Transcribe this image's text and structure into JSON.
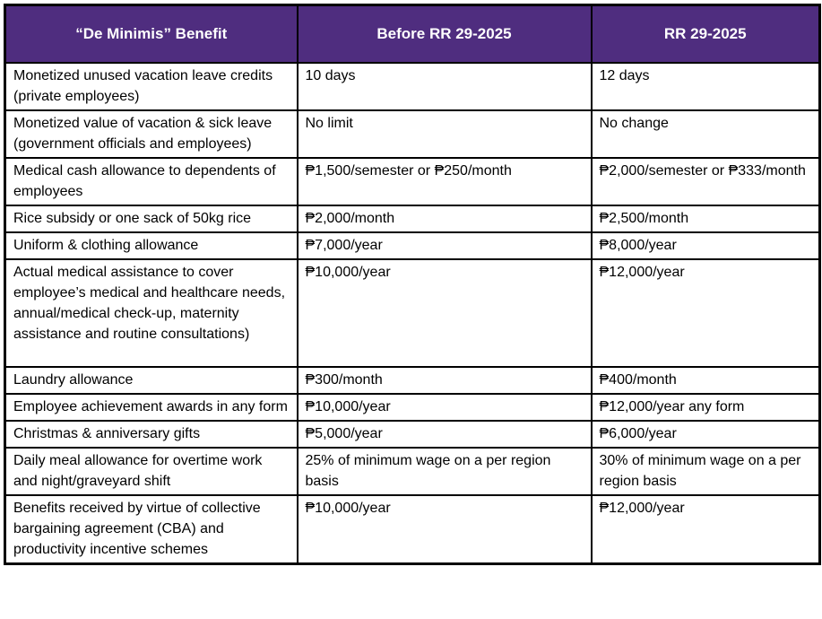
{
  "colors": {
    "header_bg": "#4F2D7F",
    "header_text": "#FFFFFF",
    "border": "#000000",
    "body_text": "#000000"
  },
  "table": {
    "columns": [
      {
        "label": "“De Minimis” Benefit"
      },
      {
        "label": "Before RR 29-2025"
      },
      {
        "label": "RR 29-2025"
      }
    ],
    "rows": [
      {
        "benefit": "Monetized unused vacation leave credits (private employees)",
        "before": "10 days",
        "after": "12 days"
      },
      {
        "benefit": "Monetized value of vacation & sick leave (government officials and employees)",
        "before": "No limit",
        "after": "No change"
      },
      {
        "benefit": "Medical cash allowance to dependents of employees",
        "before": "₱1,500/semester or ₱250/month",
        "after": "₱2,000/semester or ₱333/month"
      },
      {
        "benefit": "Rice subsidy or one sack of 50kg rice",
        "before": "₱2,000/month",
        "after": "₱2,500/month"
      },
      {
        "benefit": "Uniform & clothing allowance",
        "before": "₱7,000/year",
        "after": "₱8,000/year"
      },
      {
        "benefit": "Actual medical assistance to cover employee’s medical and healthcare needs, annual/medical check-up, maternity assistance and routine consultations)",
        "before": "₱10,000/year",
        "after": "₱12,000/year"
      },
      {
        "benefit": "Laundry allowance",
        "before": "₱300/month",
        "after": "₱400/month"
      },
      {
        "benefit": "Employee achievement awards in any form",
        "before": "₱10,000/year",
        "after": "₱12,000/year any form"
      },
      {
        "benefit": "Christmas & anniversary gifts",
        "before": "₱5,000/year",
        "after": "₱6,000/year"
      },
      {
        "benefit": "Daily meal allowance for overtime work and night/graveyard shift",
        "before": "25% of minimum wage on a per region basis",
        "after": "30% of minimum wage on a per region basis"
      },
      {
        "benefit": "Benefits received by virtue of collective bargaining agreement (CBA) and productivity incentive schemes",
        "before": "₱10,000/year",
        "after": "₱12,000/year"
      }
    ]
  }
}
